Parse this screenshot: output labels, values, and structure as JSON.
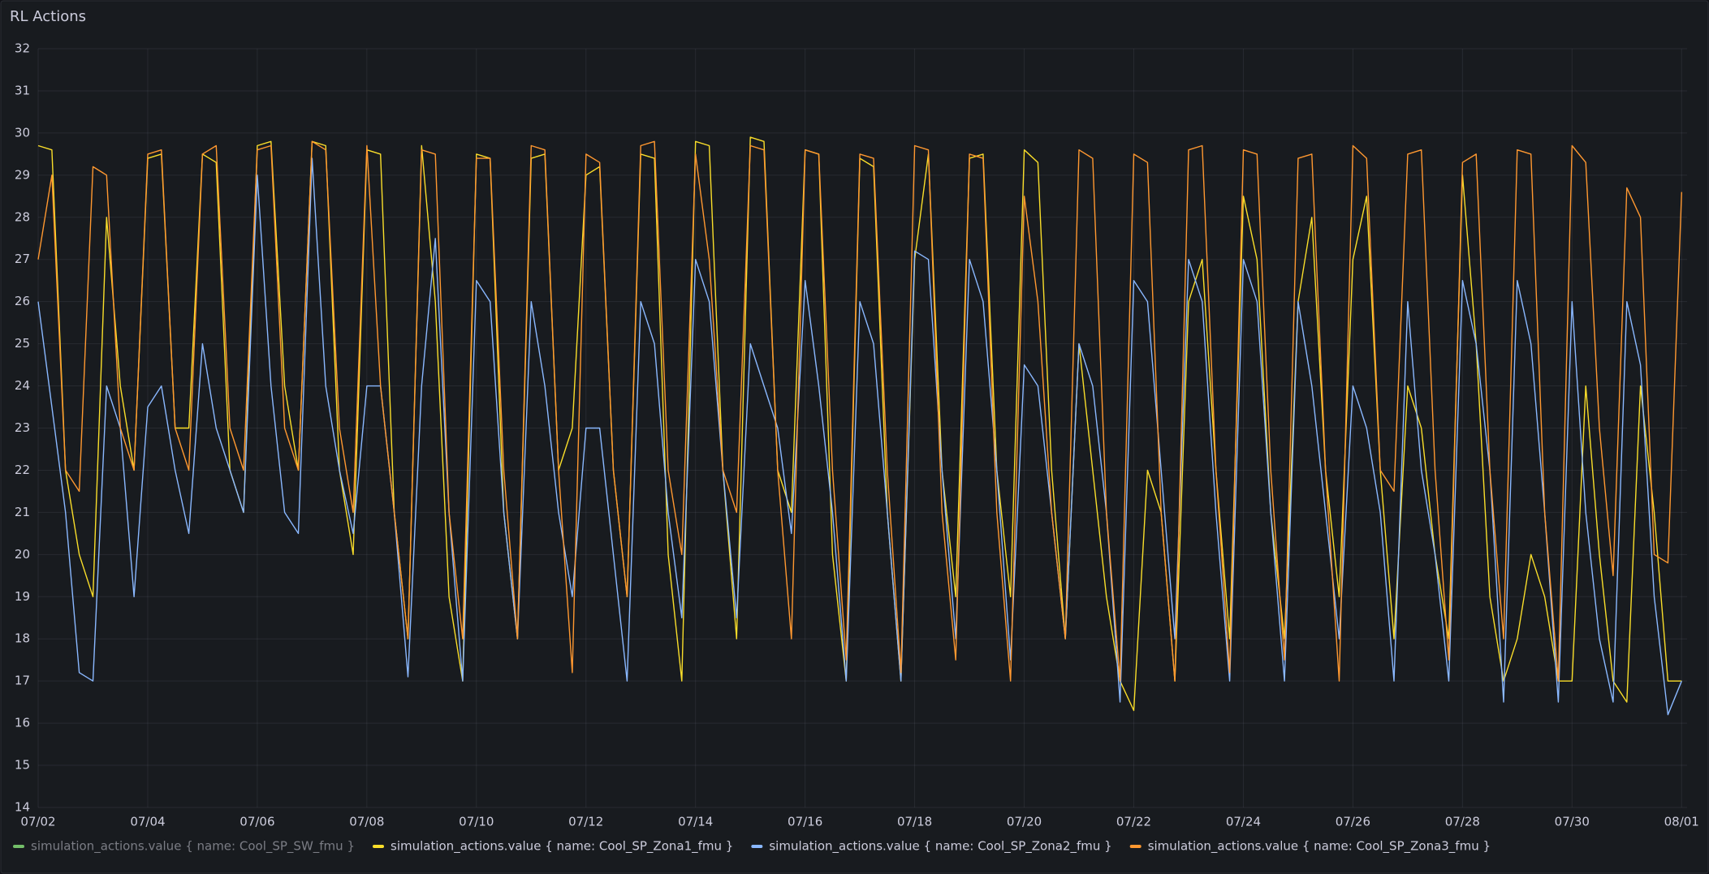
{
  "chart_data": {
    "type": "line",
    "title": "RL Actions",
    "x": [
      0,
      0.25,
      0.5,
      0.75,
      1,
      1.25,
      1.5,
      1.75,
      2,
      2.25,
      2.5,
      2.75,
      3,
      3.25,
      3.5,
      3.75,
      4,
      4.25,
      4.5,
      4.75,
      5,
      5.25,
      5.5,
      5.75,
      6,
      6.25,
      6.5,
      6.75,
      7,
      7.25,
      7.5,
      7.75,
      8,
      8.25,
      8.5,
      8.75,
      9,
      9.25,
      9.5,
      9.75,
      10,
      10.25,
      10.5,
      10.75,
      11,
      11.25,
      11.5,
      11.75,
      12,
      12.25,
      12.5,
      12.75,
      13,
      13.25,
      13.5,
      13.75,
      14,
      14.25,
      14.5,
      14.75,
      15,
      15.25,
      15.5,
      15.75,
      16,
      16.25,
      16.5,
      16.75,
      17,
      17.25,
      17.5,
      17.75,
      18,
      18.25,
      18.5,
      18.75,
      19,
      19.25,
      19.5,
      19.75,
      20,
      20.25,
      20.5,
      20.75,
      21,
      21.25,
      21.5,
      21.75,
      22,
      22.25,
      22.5,
      22.75,
      23,
      23.25,
      23.5,
      23.75,
      24,
      24.25,
      24.5,
      24.75,
      25,
      25.25,
      25.5,
      25.75,
      26,
      26.25,
      26.5,
      26.75,
      27,
      27.25,
      27.5,
      27.75,
      28,
      28.25,
      28.5,
      28.75,
      29,
      29.25,
      29.5,
      29.75,
      30
    ],
    "series": [
      {
        "name": "simulation_actions.value { name: Cool_SP_SW_fmu }",
        "color": "#73bf69",
        "hidden": true
      },
      {
        "name": "simulation_actions.value { name: Cool_SP_Zona1_fmu }",
        "color": "#fade2a",
        "values": [
          29.7,
          29.6,
          22,
          20,
          19,
          28,
          24,
          22,
          29.4,
          29.5,
          23,
          23,
          29.5,
          29.3,
          22,
          21,
          29.7,
          29.8,
          24,
          22,
          29.8,
          29.7,
          22,
          20,
          29.6,
          29.5,
          21,
          18,
          29.7,
          26,
          19,
          17,
          29.5,
          29.4,
          21,
          18,
          29.4,
          29.5,
          22,
          23,
          29,
          29.2,
          22,
          19,
          29.5,
          29.4,
          20,
          17,
          29.8,
          29.7,
          22,
          18,
          29.9,
          29.8,
          22,
          21,
          29.6,
          29.5,
          20,
          17,
          29.4,
          29.2,
          21,
          17,
          27,
          29.5,
          22,
          19,
          29.4,
          29.5,
          22,
          19,
          29.6,
          29.3,
          22,
          18,
          25,
          22,
          19,
          17,
          16.3,
          22,
          21,
          17,
          26,
          27,
          22,
          18,
          28.5,
          27,
          21,
          18,
          26,
          28,
          22,
          19,
          27,
          28.5,
          22,
          18,
          24,
          23,
          20,
          18,
          29,
          25,
          19,
          17,
          18,
          20,
          19,
          17,
          17,
          24,
          20,
          17,
          16.5,
          24,
          21,
          17,
          17
        ]
      },
      {
        "name": "simulation_actions.value { name: Cool_SP_Zona2_fmu }",
        "color": "#8ab8ff",
        "values": [
          26,
          23.5,
          21,
          17.2,
          17,
          24,
          23,
          19,
          23.5,
          24,
          22,
          20.5,
          25,
          23,
          22,
          21,
          29,
          24,
          21,
          20.5,
          29.4,
          24,
          22,
          20.5,
          24,
          24,
          21,
          17.1,
          24,
          27.5,
          21,
          17,
          26.5,
          26,
          21,
          18,
          26,
          24,
          21,
          19,
          23,
          23,
          20,
          17,
          26,
          25,
          21,
          18.5,
          27,
          26,
          22,
          18.5,
          25,
          24,
          23,
          20.5,
          26.5,
          24,
          21,
          17,
          26,
          25,
          21,
          17,
          27.2,
          27,
          22,
          18,
          27,
          26,
          22,
          17.5,
          24.5,
          24,
          21,
          18,
          25,
          24,
          21,
          16.5,
          26.5,
          26,
          22,
          18,
          27,
          26,
          21,
          17,
          27,
          26,
          21,
          17,
          26,
          24,
          21,
          18,
          24,
          23,
          21,
          17,
          26,
          22,
          20,
          17,
          26.5,
          25,
          22,
          16.5,
          26.5,
          25,
          21,
          16.5,
          26,
          21,
          18,
          16.5,
          26,
          24.5,
          19,
          16.2,
          17
        ]
      },
      {
        "name": "simulation_actions.value { name: Cool_SP_Zona3_fmu }",
        "color": "#ff9830",
        "values": [
          27,
          29,
          22,
          21.5,
          29.2,
          29,
          23,
          22,
          29.5,
          29.6,
          23,
          22,
          29.5,
          29.7,
          23,
          22,
          29.6,
          29.7,
          23,
          22,
          29.8,
          29.6,
          23,
          21,
          29.7,
          24,
          21,
          18,
          29.6,
          29.5,
          21,
          18,
          29.4,
          29.4,
          22,
          18,
          29.7,
          29.6,
          22,
          17.2,
          29.5,
          29.3,
          22,
          19,
          29.7,
          29.8,
          22,
          20,
          29.5,
          27,
          22,
          21,
          29.7,
          29.6,
          22,
          18,
          29.6,
          29.5,
          22,
          17.5,
          29.5,
          29.4,
          22,
          17.2,
          29.7,
          29.6,
          21,
          17.5,
          29.5,
          29.4,
          21,
          17,
          28.5,
          26,
          21,
          18,
          29.6,
          29.4,
          21,
          17,
          29.5,
          29.3,
          21,
          17,
          29.6,
          29.7,
          22,
          17.2,
          29.6,
          29.5,
          22,
          17.5,
          29.4,
          29.5,
          22,
          17,
          29.7,
          29.4,
          22,
          21.5,
          29.5,
          29.6,
          22,
          17.5,
          29.3,
          29.5,
          22,
          18,
          29.6,
          29.5,
          21,
          17,
          29.7,
          29.3,
          23,
          19.5,
          28.7,
          28,
          20,
          19.8,
          28.6
        ]
      }
    ],
    "xlim": [
      0,
      30.1
    ],
    "xticks": [
      {
        "value": 0,
        "label": "07/02"
      },
      {
        "value": 2,
        "label": "07/04"
      },
      {
        "value": 4,
        "label": "07/06"
      },
      {
        "value": 6,
        "label": "07/08"
      },
      {
        "value": 8,
        "label": "07/10"
      },
      {
        "value": 10,
        "label": "07/12"
      },
      {
        "value": 12,
        "label": "07/14"
      },
      {
        "value": 14,
        "label": "07/16"
      },
      {
        "value": 16,
        "label": "07/18"
      },
      {
        "value": 18,
        "label": "07/20"
      },
      {
        "value": 20,
        "label": "07/22"
      },
      {
        "value": 22,
        "label": "07/24"
      },
      {
        "value": 24,
        "label": "07/26"
      },
      {
        "value": 26,
        "label": "07/28"
      },
      {
        "value": 28,
        "label": "07/30"
      },
      {
        "value": 30,
        "label": "08/01"
      }
    ],
    "ylim": [
      14,
      32
    ],
    "yticks": [
      14,
      15,
      16,
      17,
      18,
      19,
      20,
      21,
      22,
      23,
      24,
      25,
      26,
      27,
      28,
      29,
      30,
      31,
      32
    ],
    "grid": true,
    "legend": "bottom"
  }
}
